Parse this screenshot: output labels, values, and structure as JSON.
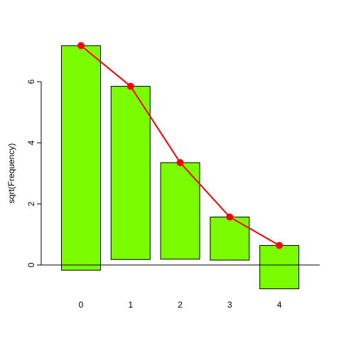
{
  "chart_data": {
    "type": "bar",
    "title": "",
    "xlabel": "",
    "ylabel": "sqrt(Frequency)",
    "categories": [
      "0",
      "1",
      "2",
      "3",
      "4"
    ],
    "bars": [
      {
        "category": "0",
        "bottom": -0.17,
        "top": 7.18
      },
      {
        "category": "1",
        "bottom": 0.18,
        "top": 5.85
      },
      {
        "category": "2",
        "bottom": 0.19,
        "top": 3.35
      },
      {
        "category": "3",
        "bottom": 0.16,
        "top": 1.57
      },
      {
        "category": "4",
        "bottom": -0.78,
        "top": 0.64
      }
    ],
    "fitted": {
      "x": [
        "0",
        "1",
        "2",
        "3",
        "4"
      ],
      "values": [
        7.18,
        5.85,
        3.35,
        1.57,
        0.64
      ]
    },
    "y_ticks": [
      0,
      2,
      4,
      6
    ],
    "ylim": [
      -0.78,
      7.18
    ],
    "reference_line_y": 0,
    "grid": false,
    "legend": "none",
    "colors": {
      "bar_fill": "#7cfc00",
      "bar_stroke": "#000000",
      "fitted_line": "#ff0000",
      "fitted_point": "#ff0000",
      "axis": "#000000"
    }
  }
}
